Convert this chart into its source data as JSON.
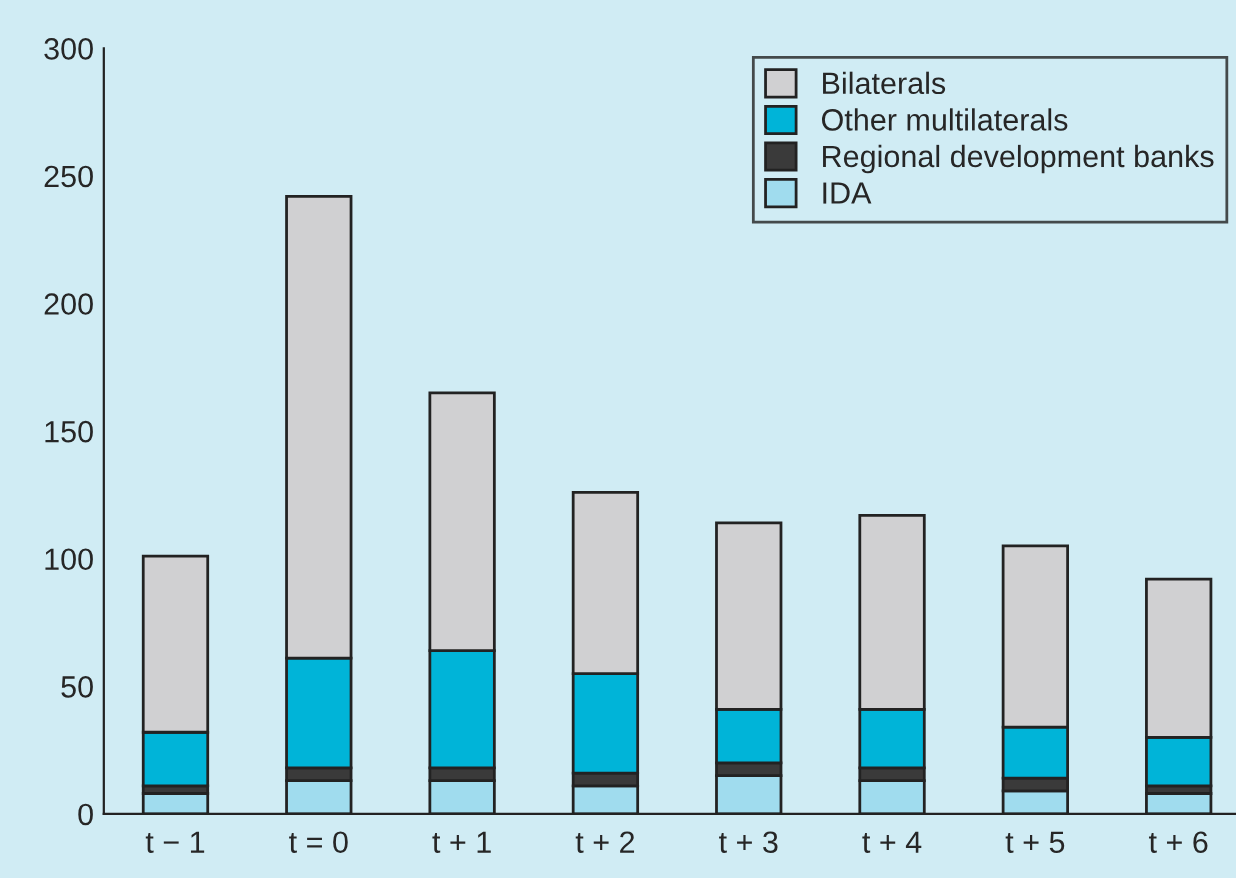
{
  "chart_data": {
    "type": "bar",
    "stacked": true,
    "categories": [
      "t − 1",
      "t = 0",
      "t + 1",
      "t + 2",
      "t + 3",
      "t + 4",
      "t + 5",
      "t + 6"
    ],
    "series": [
      {
        "name": "IDA",
        "color": "#a0dcee",
        "values": [
          8,
          13,
          13,
          11,
          15,
          13,
          9,
          8
        ]
      },
      {
        "name": "Regional development banks",
        "color": "#3a3a3a",
        "values": [
          3,
          5,
          5,
          5,
          5,
          5,
          5,
          3
        ]
      },
      {
        "name": "Other multilaterals",
        "color": "#00b4d8",
        "values": [
          21,
          43,
          46,
          39,
          21,
          23,
          20,
          19
        ]
      },
      {
        "name": "Bilaterals",
        "color": "#d0d0d2",
        "values": [
          69,
          181,
          101,
          71,
          73,
          76,
          71,
          62
        ]
      }
    ],
    "ylim": [
      0,
      300
    ],
    "yticks": [
      0,
      50,
      100,
      150,
      200,
      250,
      300
    ],
    "grid": false,
    "legend": "top right"
  }
}
